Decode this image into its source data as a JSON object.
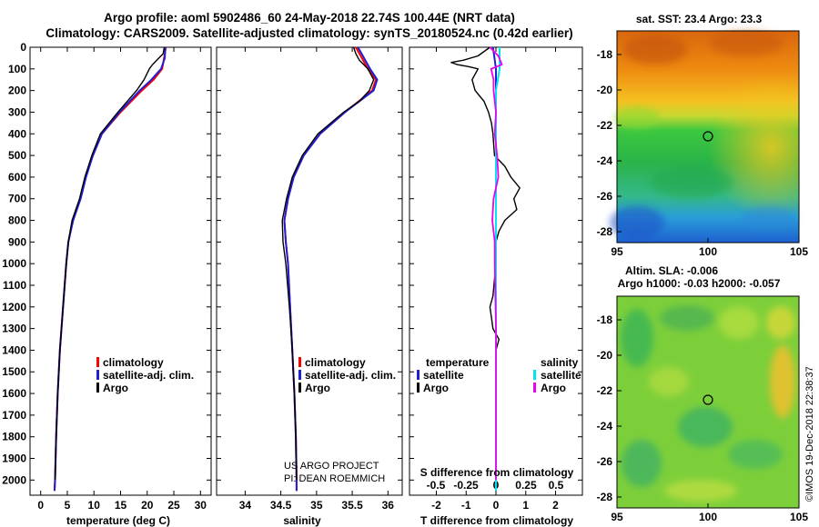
{
  "header": {
    "line1": "Argo profile: aoml 5902486_60 24-May-2018 22.74S 100.44E (NRT data)",
    "line2": "Climatology: CARS2009. Satellite-adjusted climatology: synTS_20180524.nc (0.42d earlier)"
  },
  "colors": {
    "climatology": "#ff0000",
    "satellite": "#1f1fd6",
    "argo": "#000000",
    "sat_diff": "#00e5ee",
    "argo_s_diff": "#ee00ee"
  },
  "chart_data": [
    {
      "id": "temperature",
      "type": "line",
      "xlabel": "temperature (deg C)",
      "ylabel": "",
      "xlim": [
        -2,
        32
      ],
      "ylim": [
        2070,
        0
      ],
      "xticks": [
        "0",
        "5",
        "10",
        "15",
        "20",
        "25",
        "30"
      ],
      "xtick_values": [
        0,
        5,
        10,
        15,
        20,
        25,
        30
      ],
      "yticks": [
        "0",
        "100",
        "200",
        "300",
        "400",
        "500",
        "600",
        "700",
        "800",
        "900",
        "1000",
        "1100",
        "1200",
        "1300",
        "1400",
        "1500",
        "1600",
        "1700",
        "1800",
        "1900",
        "2000"
      ],
      "legend": [
        "climatology",
        "satellite-adj. clim.",
        "Argo"
      ],
      "series": [
        {
          "name": "climatology",
          "depth": [
            0,
            100,
            150,
            200,
            300,
            400,
            500,
            600,
            700,
            800,
            900,
            1000,
            1200,
            1400,
            1600,
            1800,
            2000,
            2050
          ],
          "values": [
            23.5,
            22.8,
            21.2,
            19.0,
            15.0,
            11.5,
            9.8,
            8.4,
            7.4,
            6.0,
            5.2,
            4.8,
            4.2,
            3.6,
            3.2,
            2.9,
            2.7,
            2.6
          ]
        },
        {
          "name": "satellite-adj. clim.",
          "depth": [
            0,
            50,
            100,
            150,
            200,
            300,
            400,
            500,
            600,
            700,
            800,
            900,
            1000,
            1200,
            1400,
            1600,
            1800,
            2000,
            2050
          ],
          "values": [
            23.4,
            23.3,
            22.6,
            20.8,
            18.6,
            14.8,
            11.5,
            9.8,
            8.5,
            7.5,
            6.1,
            5.2,
            4.8,
            4.2,
            3.6,
            3.2,
            2.9,
            2.7,
            2.6
          ]
        },
        {
          "name": "Argo",
          "depth": [
            0,
            30,
            50,
            80,
            100,
            150,
            200,
            300,
            400,
            500,
            600,
            700,
            800,
            900,
            1000,
            1200,
            1400,
            1600,
            1800,
            2000
          ],
          "values": [
            23.2,
            23.0,
            22.2,
            21.0,
            20.4,
            19.4,
            18.0,
            14.5,
            11.2,
            9.6,
            8.3,
            7.3,
            5.9,
            5.2,
            4.8,
            4.2,
            3.6,
            3.2,
            2.9,
            2.7
          ]
        }
      ]
    },
    {
      "id": "salinity",
      "type": "line",
      "xlabel": "salinity",
      "ylabel": "",
      "xlim": [
        33.6,
        36.2
      ],
      "ylim": [
        2070,
        0
      ],
      "xticks": [
        "34",
        "34.5",
        "35",
        "35.5",
        "36"
      ],
      "xtick_values": [
        34,
        34.5,
        35,
        35.5,
        36
      ],
      "legend": [
        "climatology",
        "satellite-adj. clim.",
        "Argo"
      ],
      "project_text": [
        "US ARGO PROJECT",
        "PI: DEAN ROEMMICH"
      ],
      "series": [
        {
          "name": "climatology",
          "depth": [
            0,
            100,
            150,
            200,
            300,
            400,
            500,
            600,
            700,
            800,
            900,
            1000,
            1200,
            1400,
            1600,
            1800,
            2000,
            2050
          ],
          "values": [
            35.55,
            35.72,
            35.83,
            35.78,
            35.4,
            35.05,
            34.82,
            34.68,
            34.6,
            34.55,
            34.57,
            34.6,
            34.63,
            34.66,
            34.69,
            34.71,
            34.72,
            34.72
          ]
        },
        {
          "name": "satellite-adj. clim.",
          "depth": [
            0,
            100,
            150,
            200,
            300,
            400,
            500,
            600,
            700,
            800,
            900,
            1000,
            1200,
            1400,
            1600,
            1800,
            2000,
            2050
          ],
          "values": [
            35.58,
            35.75,
            35.85,
            35.8,
            35.4,
            35.05,
            34.82,
            34.68,
            34.6,
            34.55,
            34.57,
            34.6,
            34.63,
            34.66,
            34.69,
            34.71,
            34.72,
            34.72
          ]
        },
        {
          "name": "Argo",
          "depth": [
            0,
            30,
            60,
            100,
            150,
            200,
            250,
            300,
            400,
            500,
            600,
            700,
            800,
            900,
            1000,
            1200,
            1400,
            1600,
            1800,
            2000
          ],
          "values": [
            35.52,
            35.55,
            35.6,
            35.72,
            35.8,
            35.74,
            35.6,
            35.38,
            35.02,
            34.8,
            34.66,
            34.58,
            34.52,
            34.53,
            34.57,
            34.62,
            34.66,
            34.69,
            34.71,
            34.72
          ]
        }
      ]
    },
    {
      "id": "difference",
      "type": "line",
      "xlabel": "T difference from climatology",
      "xlabel_top": "S difference from climatology",
      "xlim": [
        -2.9,
        2.9
      ],
      "ylim": [
        2070,
        0
      ],
      "xticks": [
        "-2",
        "-1",
        "0",
        "1",
        "2"
      ],
      "xtick_values": [
        -2,
        -1,
        0,
        1,
        2
      ],
      "s_ticks": [
        "-0.5",
        "-0.25",
        "0",
        "0.25",
        "0.5"
      ],
      "s_tick_values": [
        -0.5,
        -0.25,
        0,
        0.25,
        0.5
      ],
      "legend_left_title": "temperature",
      "legend_right_title": "salinity",
      "legend_left": [
        "satellite",
        "Argo"
      ],
      "legend_right": [
        "satellite",
        "Argo"
      ],
      "series": [
        {
          "name": "T satellite",
          "depth": [
            0,
            50,
            100,
            200,
            400,
            700,
            1000,
            1400,
            2050
          ],
          "values": [
            -0.1,
            -0.05,
            0.0,
            0.0,
            0.0,
            0.0,
            0.0,
            0.0,
            0.0
          ]
        },
        {
          "name": "T Argo",
          "depth": [
            0,
            40,
            60,
            70,
            80,
            90,
            100,
            150,
            200,
            250,
            300,
            350,
            400,
            500,
            550,
            600,
            650,
            700,
            750,
            800,
            850,
            900,
            1000,
            1150,
            1200,
            1250,
            1300,
            1350,
            1400,
            1500,
            1700,
            2000
          ],
          "values": [
            -0.2,
            -0.6,
            -1.1,
            -1.5,
            -1.3,
            -0.9,
            -0.6,
            -0.8,
            -0.7,
            -0.4,
            -0.25,
            -0.15,
            -0.1,
            -0.05,
            0.3,
            0.5,
            0.8,
            0.6,
            0.7,
            0.3,
            0.1,
            0.0,
            0.0,
            -0.1,
            -0.2,
            -0.15,
            -0.1,
            0.1,
            0.0,
            0.0,
            0.0,
            0.0
          ]
        },
        {
          "name": "S satellite",
          "depth": [
            0,
            100,
            200,
            400,
            700,
            1000,
            1400,
            2050
          ],
          "values": [
            0.03,
            0.03,
            0.0,
            0.0,
            0.0,
            0.0,
            0.0,
            0.0
          ]
        },
        {
          "name": "S Argo",
          "depth": [
            0,
            40,
            80,
            100,
            150,
            200,
            300,
            400,
            500,
            600,
            700,
            800,
            900,
            1000,
            1300,
            1400,
            1500,
            2000
          ],
          "values": [
            -0.05,
            0.02,
            0.05,
            -0.04,
            -0.02,
            -0.02,
            0.0,
            -0.01,
            0.01,
            0.02,
            -0.02,
            -0.03,
            -0.01,
            -0.01,
            0.0,
            0.0,
            0.0,
            0.0
          ]
        }
      ]
    }
  ],
  "maps": {
    "sst": {
      "title": "sat. SST: 23.4 Argo: 23.3",
      "xticks": [
        "95",
        "100",
        "105"
      ],
      "yticks": [
        "-18",
        "-20",
        "-22",
        "-24",
        "-26",
        "-28"
      ]
    },
    "sla": {
      "title_line1": "Altim. SLA: -0.006",
      "title_line2": "Argo h1000: -0.03 h2000: -0.057",
      "xticks": [
        "95",
        "100",
        "105"
      ],
      "yticks": [
        "-18",
        "-20",
        "-22",
        "-24",
        "-26",
        "-28"
      ]
    },
    "credit": "©IMOS 19-Dec-2018 22:38:37"
  }
}
